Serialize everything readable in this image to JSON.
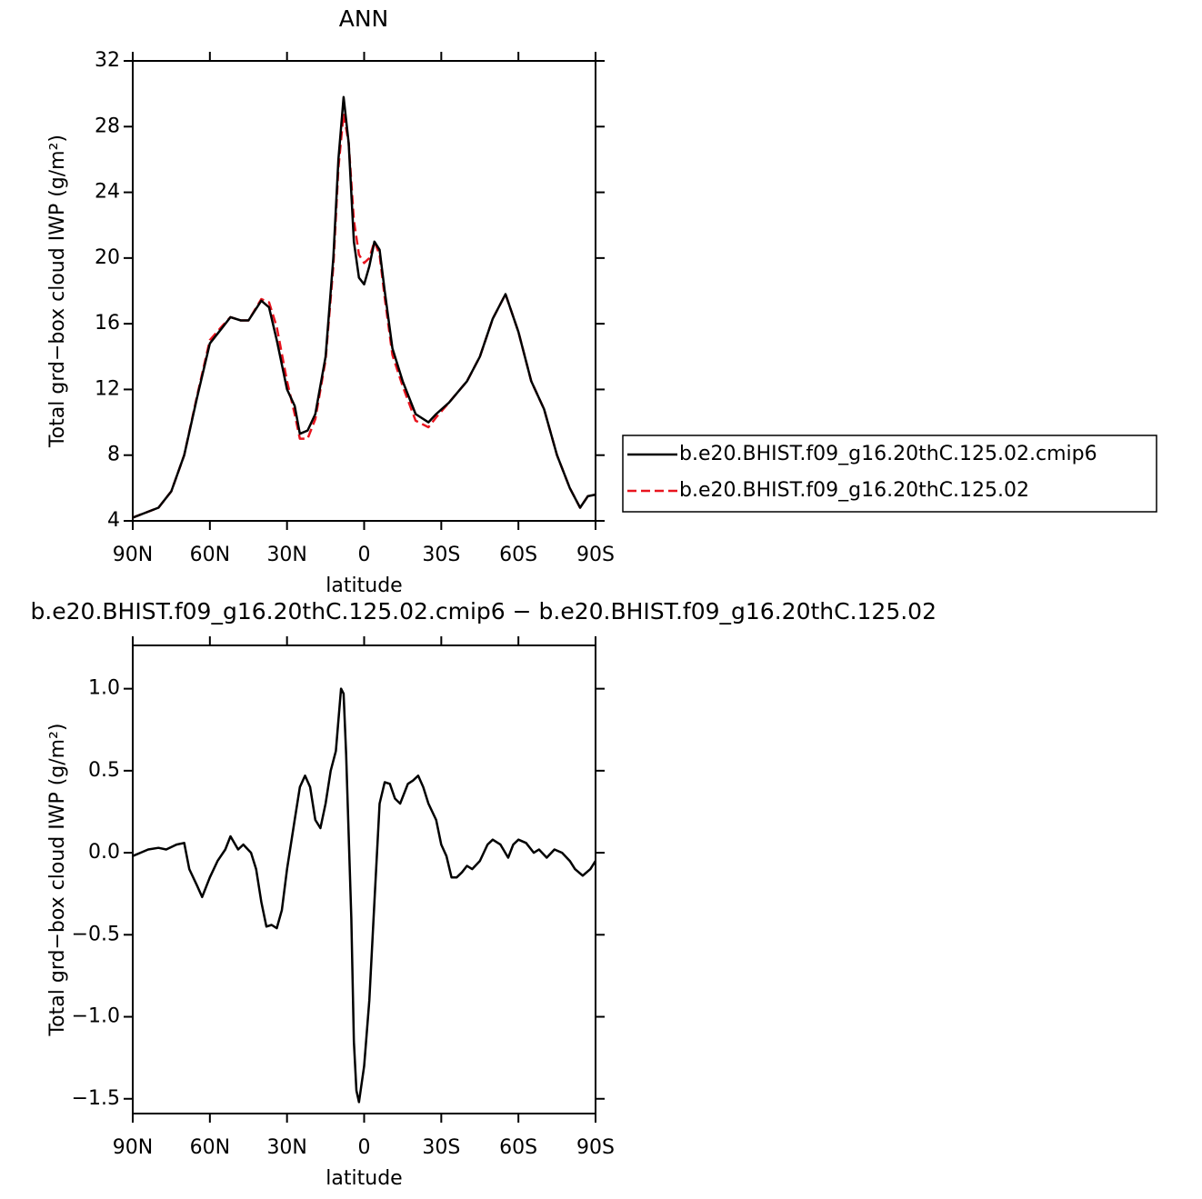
{
  "chart_data": [
    {
      "type": "line",
      "title": "ANN",
      "xlabel": "latitude",
      "ylabel": "Total grd−box cloud IWP (g/m²)",
      "legend": "right",
      "x": [
        90,
        85,
        80,
        75,
        70,
        65,
        60,
        55,
        52,
        48,
        45,
        40,
        37,
        34,
        30,
        27,
        25,
        22,
        19,
        15,
        12,
        10,
        8,
        6,
        4,
        2,
        0,
        -2,
        -4,
        -6,
        -8,
        -11,
        -15,
        -20,
        -25,
        -28,
        -33,
        -40,
        -45,
        -50,
        -55,
        -60,
        -65,
        -70,
        -75,
        -80,
        -84,
        -87,
        -90
      ],
      "series": [
        {
          "name": "b.e20.BHIST.f09_g16.20thC.125.02",
          "color": "#e8141e",
          "dashed": true,
          "values": [
            4.2,
            4.5,
            4.8,
            5.8,
            8.0,
            11.6,
            15.0,
            15.9,
            16.4,
            16.2,
            16.2,
            17.5,
            17.3,
            15.8,
            12.5,
            10.5,
            9.0,
            9.0,
            10.2,
            13.8,
            19.5,
            25.5,
            28.8,
            27.0,
            22.3,
            20.2,
            19.7,
            20.0,
            21.0,
            20.2,
            17.6,
            14.1,
            12.2,
            10.1,
            9.7,
            10.3,
            11.2,
            12.5,
            14.0,
            16.3,
            17.8,
            15.5,
            12.5,
            10.8,
            8.0,
            6.0,
            4.8,
            5.5,
            5.6
          ]
        },
        {
          "name": "b.e20.BHIST.f09_g16.20thC.125.02.cmip6",
          "color": "#000000",
          "dashed": false,
          "values": [
            4.2,
            4.5,
            4.8,
            5.8,
            8.0,
            11.5,
            14.8,
            15.8,
            16.4,
            16.2,
            16.2,
            17.4,
            17.0,
            15.0,
            12.0,
            11.0,
            9.3,
            9.5,
            10.5,
            14.0,
            20.0,
            26.0,
            29.8,
            27.0,
            21.0,
            18.8,
            18.4,
            19.5,
            21.0,
            20.5,
            18.0,
            14.5,
            12.5,
            10.5,
            10.0,
            10.5,
            11.2,
            12.5,
            14.0,
            16.3,
            17.8,
            15.5,
            12.5,
            10.8,
            8.0,
            6.0,
            4.8,
            5.5,
            5.6
          ]
        }
      ],
      "xlim": [
        90,
        -90
      ],
      "xticks": [
        {
          "value": 90,
          "label": "90N"
        },
        {
          "value": 60,
          "label": "60N"
        },
        {
          "value": 30,
          "label": "30N"
        },
        0,
        {
          "value": -30,
          "label": "30S"
        },
        {
          "value": -60,
          "label": "60S"
        },
        {
          "value": -90,
          "label": "90S"
        }
      ],
      "ylim": [
        4,
        32
      ],
      "yticks": [
        4,
        8,
        12,
        16,
        20,
        24,
        28,
        32
      ]
    },
    {
      "type": "line",
      "title": "b.e20.BHIST.f09_g16.20thC.125.02.cmip6 − b.e20.BHIST.f09_g16.20thC.125.02",
      "xlabel": "latitude",
      "ylabel": "Total grd−box cloud IWP (g/m²)",
      "color": "#000000",
      "x": [
        90,
        87,
        84,
        80,
        77,
        73,
        70,
        68,
        65,
        63,
        60,
        57,
        54,
        52,
        49,
        47,
        44,
        42,
        40,
        38,
        36,
        34,
        32,
        30,
        27,
        25,
        23,
        21,
        19,
        17,
        15,
        13,
        11,
        9,
        8,
        7,
        5,
        4,
        3,
        2,
        0,
        -2,
        -4,
        -6,
        -8,
        -10,
        -12,
        -14,
        -17,
        -19,
        -21,
        -23,
        -25,
        -28,
        -30,
        -32,
        -34,
        -36,
        -38,
        -40,
        -42,
        -45,
        -48,
        -50,
        -53,
        -56,
        -58,
        -60,
        -63,
        -66,
        -68,
        -71,
        -74,
        -77,
        -80,
        -82,
        -85,
        -88,
        -90
      ],
      "values": [
        -0.02,
        0.0,
        0.02,
        0.03,
        0.02,
        0.05,
        0.06,
        -0.1,
        -0.2,
        -0.27,
        -0.15,
        -0.05,
        0.02,
        0.1,
        0.02,
        0.05,
        0.0,
        -0.1,
        -0.3,
        -0.45,
        -0.44,
        -0.46,
        -0.35,
        -0.1,
        0.2,
        0.4,
        0.47,
        0.4,
        0.2,
        0.15,
        0.3,
        0.5,
        0.62,
        1.0,
        0.97,
        0.6,
        -0.4,
        -1.15,
        -1.45,
        -1.52,
        -1.3,
        -0.9,
        -0.3,
        0.3,
        0.43,
        0.42,
        0.33,
        0.3,
        0.42,
        0.44,
        0.47,
        0.4,
        0.3,
        0.2,
        0.05,
        -0.02,
        -0.15,
        -0.15,
        -0.12,
        -0.08,
        -0.1,
        -0.05,
        0.05,
        0.08,
        0.05,
        -0.03,
        0.05,
        0.08,
        0.06,
        0.0,
        0.02,
        -0.03,
        0.02,
        0.0,
        -0.05,
        -0.1,
        -0.14,
        -0.1,
        -0.05
      ],
      "xlim": [
        90,
        -90
      ],
      "xticks": [
        {
          "value": 90,
          "label": "90N"
        },
        {
          "value": 60,
          "label": "60N"
        },
        {
          "value": 30,
          "label": "30N"
        },
        0,
        {
          "value": -30,
          "label": "30S"
        },
        {
          "value": -60,
          "label": "60S"
        },
        {
          "value": -90,
          "label": "90S"
        }
      ],
      "ylim": [
        -1.59,
        1.264
      ],
      "yticks": [
        {
          "value": -1.5,
          "label": "−1.5"
        },
        {
          "value": -1,
          "label": "−1.0"
        },
        {
          "value": -0.5,
          "label": "−0.5"
        },
        {
          "value": 0,
          "label": "0.0"
        },
        0.5,
        {
          "value": 1,
          "label": "1.0"
        }
      ]
    }
  ]
}
